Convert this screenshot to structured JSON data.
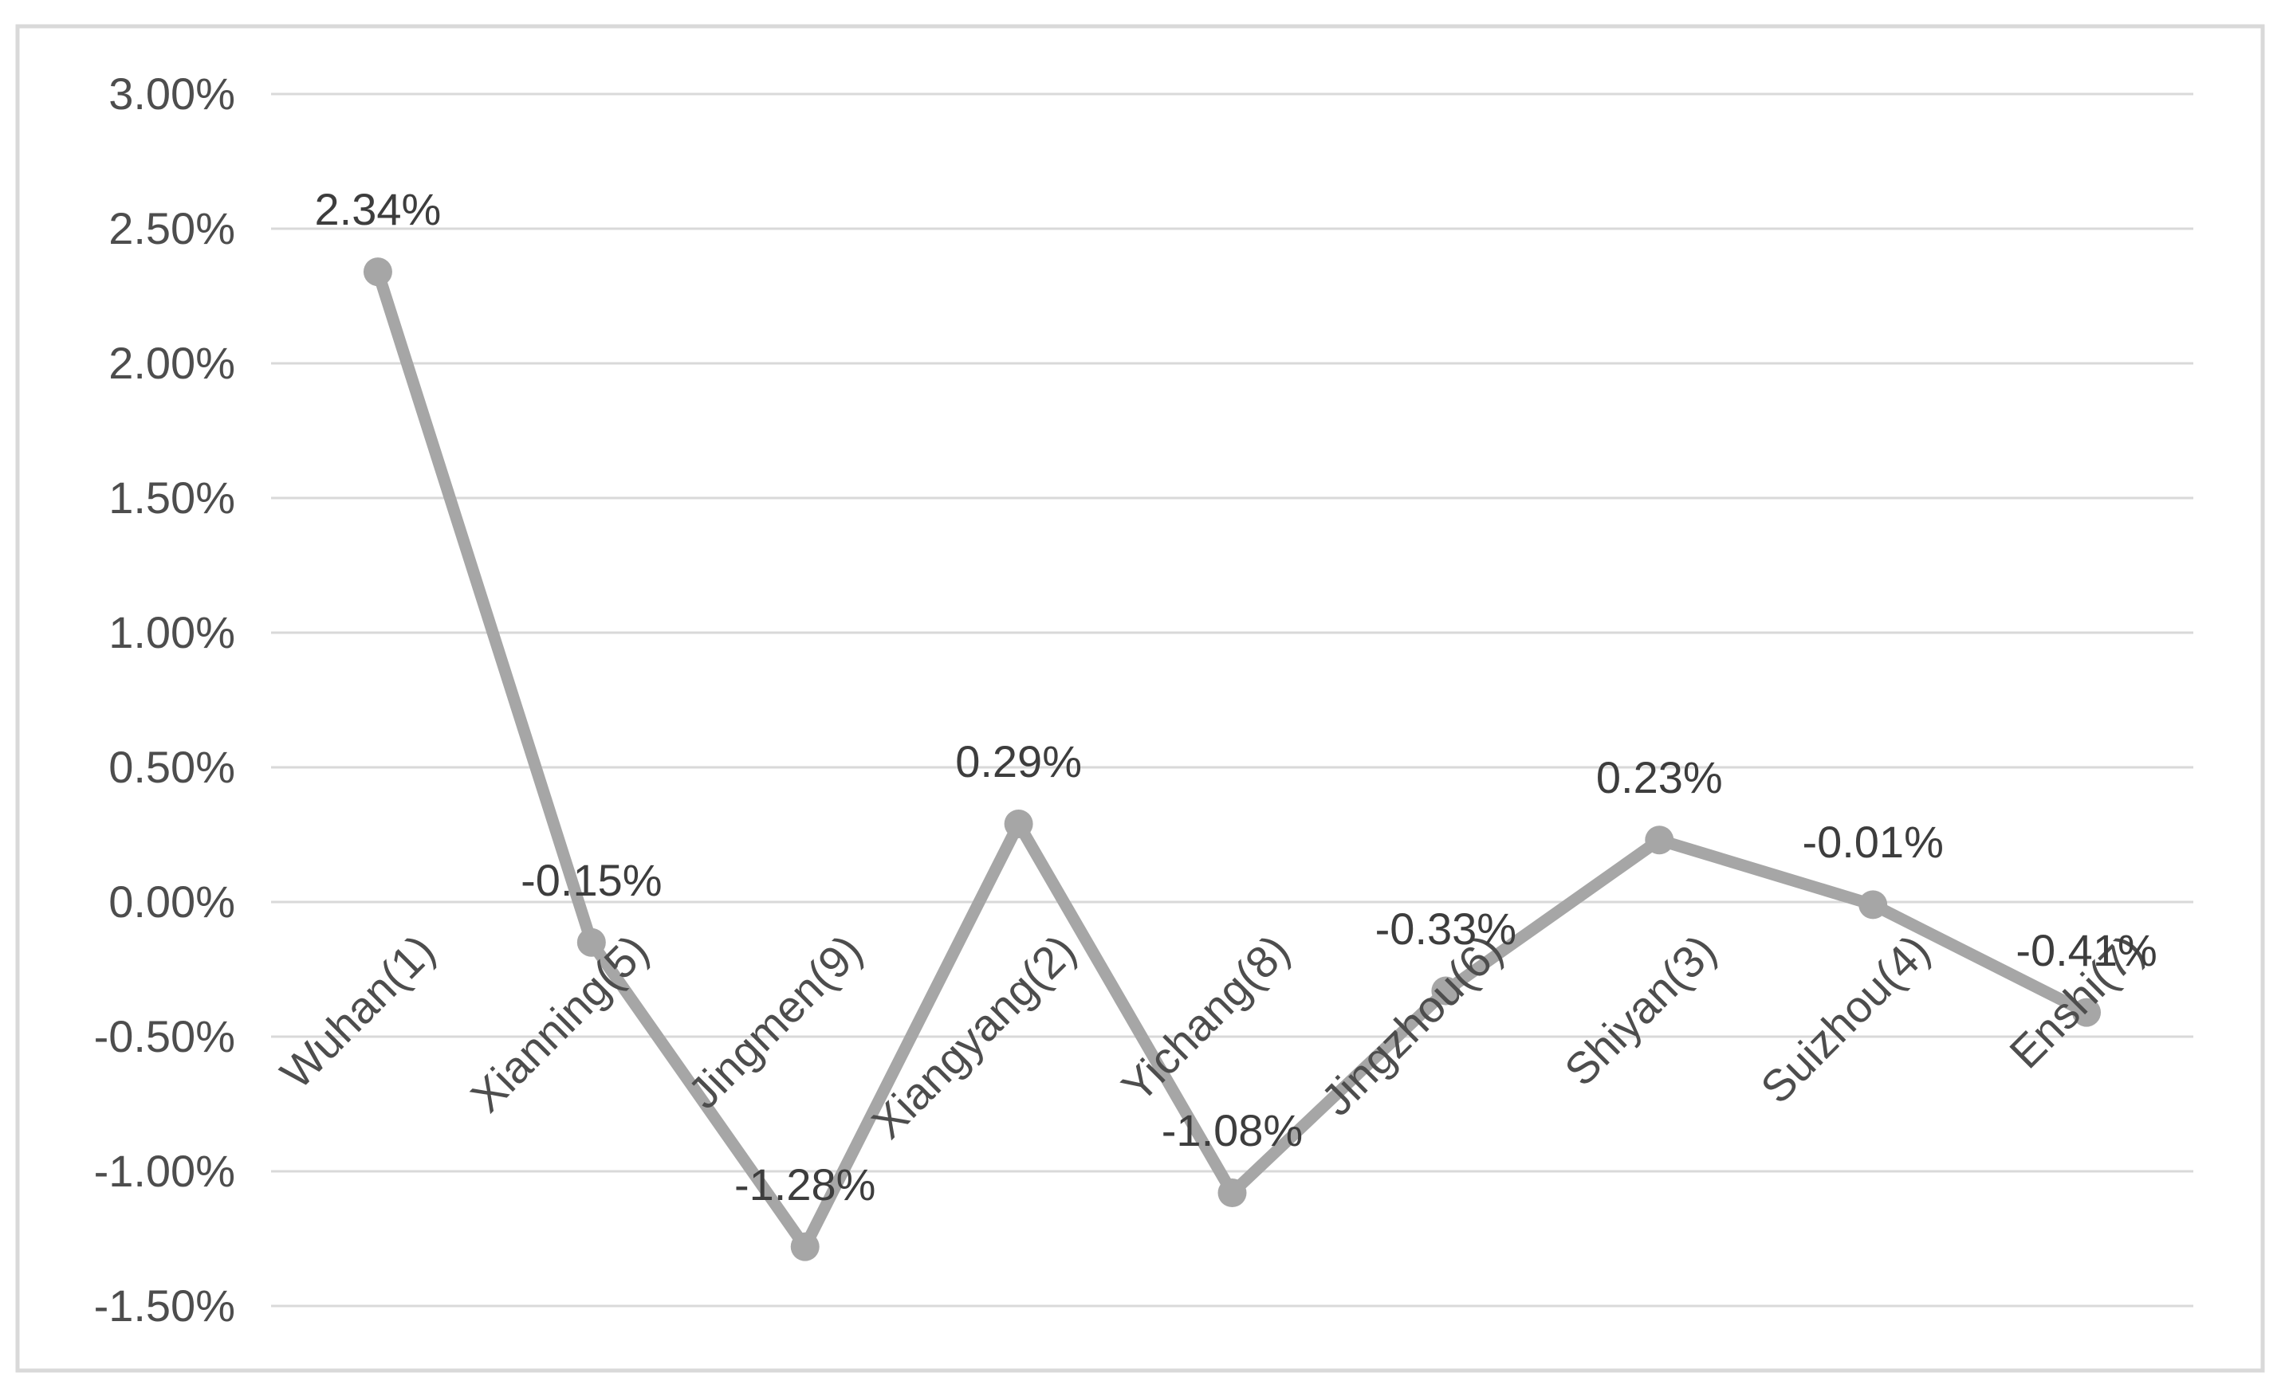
{
  "page": {
    "background_color": "#ffffff",
    "frame_color": "#d9d9d9"
  },
  "chart_data": {
    "type": "line",
    "title": "",
    "xlabel": "",
    "ylabel": "",
    "legend": "none",
    "grid": "horizontal",
    "categories": [
      "Wuhan(1)",
      "Xianning(5)",
      "Jingmen(9)",
      "Xiangyang(2)",
      "Yichang(8)",
      "Jingzhou(6)",
      "Shiyan(3)",
      "Suizhou(4)",
      "Enshi(7)"
    ],
    "series": [
      {
        "name": "series-1",
        "values": [
          2.34,
          -0.15,
          -1.28,
          0.29,
          -1.08,
          -0.33,
          0.23,
          -0.01,
          -0.41
        ],
        "color": "#a6a6a6",
        "marker": "circle"
      }
    ],
    "data_labels": [
      "2.34%",
      "-0.15%",
      "-1.28%",
      "0.29%",
      "-1.08%",
      "-0.33%",
      "0.23%",
      "-0.01%",
      "-0.41%"
    ],
    "y_axis": {
      "tick_labels": [
        "3.00%",
        "2.50%",
        "2.00%",
        "1.50%",
        "1.00%",
        "0.50%",
        "0.00%",
        "-0.50%",
        "-1.00%",
        "-1.50%"
      ],
      "tick_values": [
        3.0,
        2.5,
        2.0,
        1.5,
        1.0,
        0.5,
        0.0,
        -0.5,
        -1.0,
        -1.5
      ],
      "min": -1.5,
      "max": 3.0,
      "format": "percent"
    },
    "x_axis": {
      "label_rotation": 45,
      "label_position": "below-zero-line"
    },
    "style": {
      "line_color": "#a6a6a6",
      "marker_color": "#a6a6a6",
      "gridline_color": "#d9d9d9",
      "frame_color": "#d9d9d9",
      "tick_text_color": "#4d4d4d",
      "data_label_color": "#3d3d3d"
    }
  }
}
